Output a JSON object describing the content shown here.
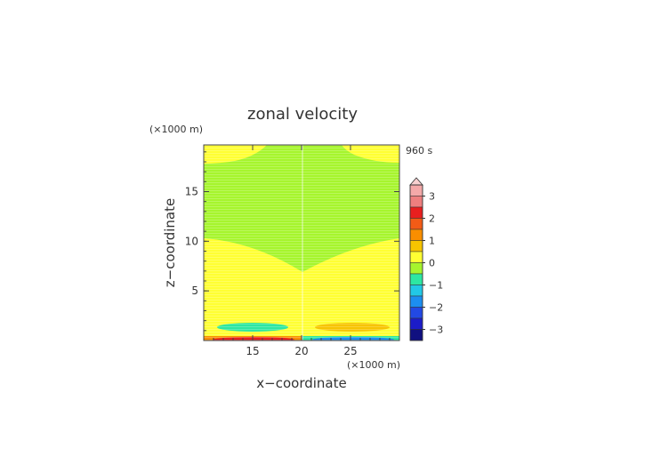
{
  "chart_data": {
    "type": "heatmap",
    "title": "zonal velocity",
    "xlabel": "x−coordinate",
    "ylabel": "z−coordinate",
    "x_unit": "(×1000 m)",
    "y_unit": "(×1000 m)",
    "time_label": "960 s",
    "xlim": [
      10,
      30
    ],
    "ylim": [
      0,
      19.7
    ],
    "x_ticks": [
      15,
      20,
      25
    ],
    "y_ticks": [
      5,
      10,
      15
    ],
    "colorbar": {
      "ticks": [
        3,
        2,
        1,
        0,
        -1,
        -2,
        -3
      ],
      "tick_labels": [
        "3",
        "2",
        "1",
        "0",
        "−1",
        "−2",
        "−3"
      ],
      "extend_top": true,
      "levels": [
        {
          "lo": 3.0,
          "hi": 3.5,
          "color": "#f4a9a9"
        },
        {
          "lo": 2.5,
          "hi": 3.0,
          "color": "#ee7f7f"
        },
        {
          "lo": 2.0,
          "hi": 2.5,
          "color": "#e81f1f"
        },
        {
          "lo": 1.5,
          "hi": 2.0,
          "color": "#f35b16"
        },
        {
          "lo": 1.0,
          "hi": 1.5,
          "color": "#f98e00"
        },
        {
          "lo": 0.5,
          "hi": 1.0,
          "color": "#f7c400"
        },
        {
          "lo": 0.0,
          "hi": 0.5,
          "color": "#ffff33"
        },
        {
          "lo": -0.5,
          "hi": 0.0,
          "color": "#a6f52d"
        },
        {
          "lo": -1.0,
          "hi": -0.5,
          "color": "#2de7a2"
        },
        {
          "lo": -1.5,
          "hi": -1.0,
          "color": "#22c8e6"
        },
        {
          "lo": -2.0,
          "hi": -1.5,
          "color": "#1c8ef0"
        },
        {
          "lo": -2.5,
          "hi": -2.0,
          "color": "#2249e4"
        },
        {
          "lo": -3.0,
          "hi": -2.5,
          "color": "#1c1cc8"
        },
        {
          "lo": -3.5,
          "hi": -3.0,
          "color": "#101080"
        }
      ]
    },
    "features": [
      {
        "kind": "band",
        "level": 0.25,
        "description": "positive velocity layer near surface"
      },
      {
        "kind": "oval",
        "x": 16.5,
        "z": 1.4,
        "level": -1.25
      },
      {
        "kind": "oval",
        "x": 25,
        "z": 1.4,
        "level": 0.75
      },
      {
        "kind": "strip",
        "x_range": [
          10,
          20
        ],
        "z": 0.1,
        "level": 2.0
      },
      {
        "kind": "strip",
        "x_range": [
          20,
          30
        ],
        "z": 0.1,
        "level": -2.0
      }
    ]
  }
}
